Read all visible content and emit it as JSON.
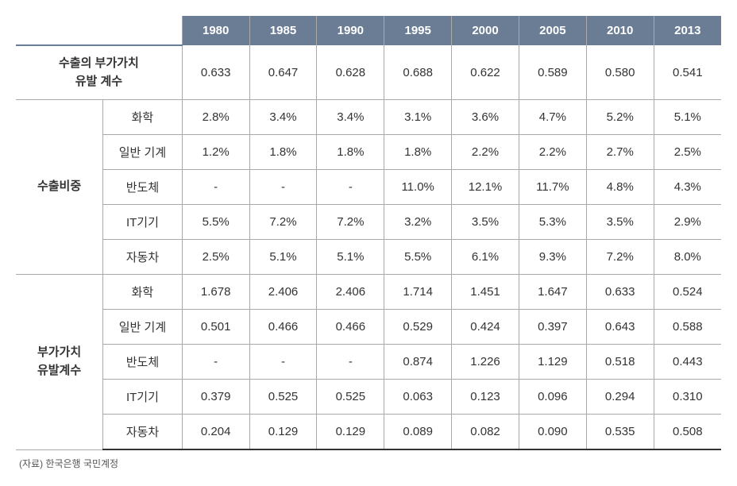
{
  "table": {
    "header_bg": "#6b7d94",
    "header_text_color": "#ffffff",
    "border_color": "#aaaaaa",
    "bottom_border_color": "#333333",
    "years": [
      "1980",
      "1985",
      "1990",
      "1995",
      "2000",
      "2005",
      "2010",
      "2013"
    ],
    "row1": {
      "label": "수출의 부가가치\n유발 계수",
      "label_line1": "수출의 부가가치",
      "label_line2": "유발 계수",
      "values": [
        "0.633",
        "0.647",
        "0.628",
        "0.688",
        "0.622",
        "0.589",
        "0.580",
        "0.541"
      ]
    },
    "group1": {
      "label": "수출비중",
      "rows": [
        {
          "sub": "화학",
          "values": [
            "2.8%",
            "3.4%",
            "3.4%",
            "3.1%",
            "3.6%",
            "4.7%",
            "5.2%",
            "5.1%"
          ]
        },
        {
          "sub": "일반 기계",
          "values": [
            "1.2%",
            "1.8%",
            "1.8%",
            "1.8%",
            "2.2%",
            "2.2%",
            "2.7%",
            "2.5%"
          ]
        },
        {
          "sub": "반도체",
          "values": [
            "-",
            "-",
            "-",
            "11.0%",
            "12.1%",
            "11.7%",
            "4.8%",
            "4.3%"
          ]
        },
        {
          "sub": "IT기기",
          "values": [
            "5.5%",
            "7.2%",
            "7.2%",
            "3.2%",
            "3.5%",
            "5.3%",
            "3.5%",
            "2.9%"
          ]
        },
        {
          "sub": "자동차",
          "values": [
            "2.5%",
            "5.1%",
            "5.1%",
            "5.5%",
            "6.1%",
            "9.3%",
            "7.2%",
            "8.0%"
          ]
        }
      ]
    },
    "group2": {
      "label": "부가가치\n유발계수",
      "label_line1": "부가가치",
      "label_line2": "유발계수",
      "rows": [
        {
          "sub": "화학",
          "values": [
            "1.678",
            "2.406",
            "2.406",
            "1.714",
            "1.451",
            "1.647",
            "0.633",
            "0.524"
          ]
        },
        {
          "sub": "일반 기계",
          "values": [
            "0.501",
            "0.466",
            "0.466",
            "0.529",
            "0.424",
            "0.397",
            "0.643",
            "0.588"
          ]
        },
        {
          "sub": "반도체",
          "values": [
            "-",
            "-",
            "-",
            "0.874",
            "1.226",
            "1.129",
            "0.518",
            "0.443"
          ]
        },
        {
          "sub": "IT기기",
          "values": [
            "0.379",
            "0.525",
            "0.525",
            "0.063",
            "0.123",
            "0.096",
            "0.294",
            "0.310"
          ]
        },
        {
          "sub": "자동차",
          "values": [
            "0.204",
            "0.129",
            "0.129",
            "0.089",
            "0.082",
            "0.090",
            "0.535",
            "0.508"
          ]
        }
      ]
    }
  },
  "source": "(자료) 한국은행 국민계정"
}
